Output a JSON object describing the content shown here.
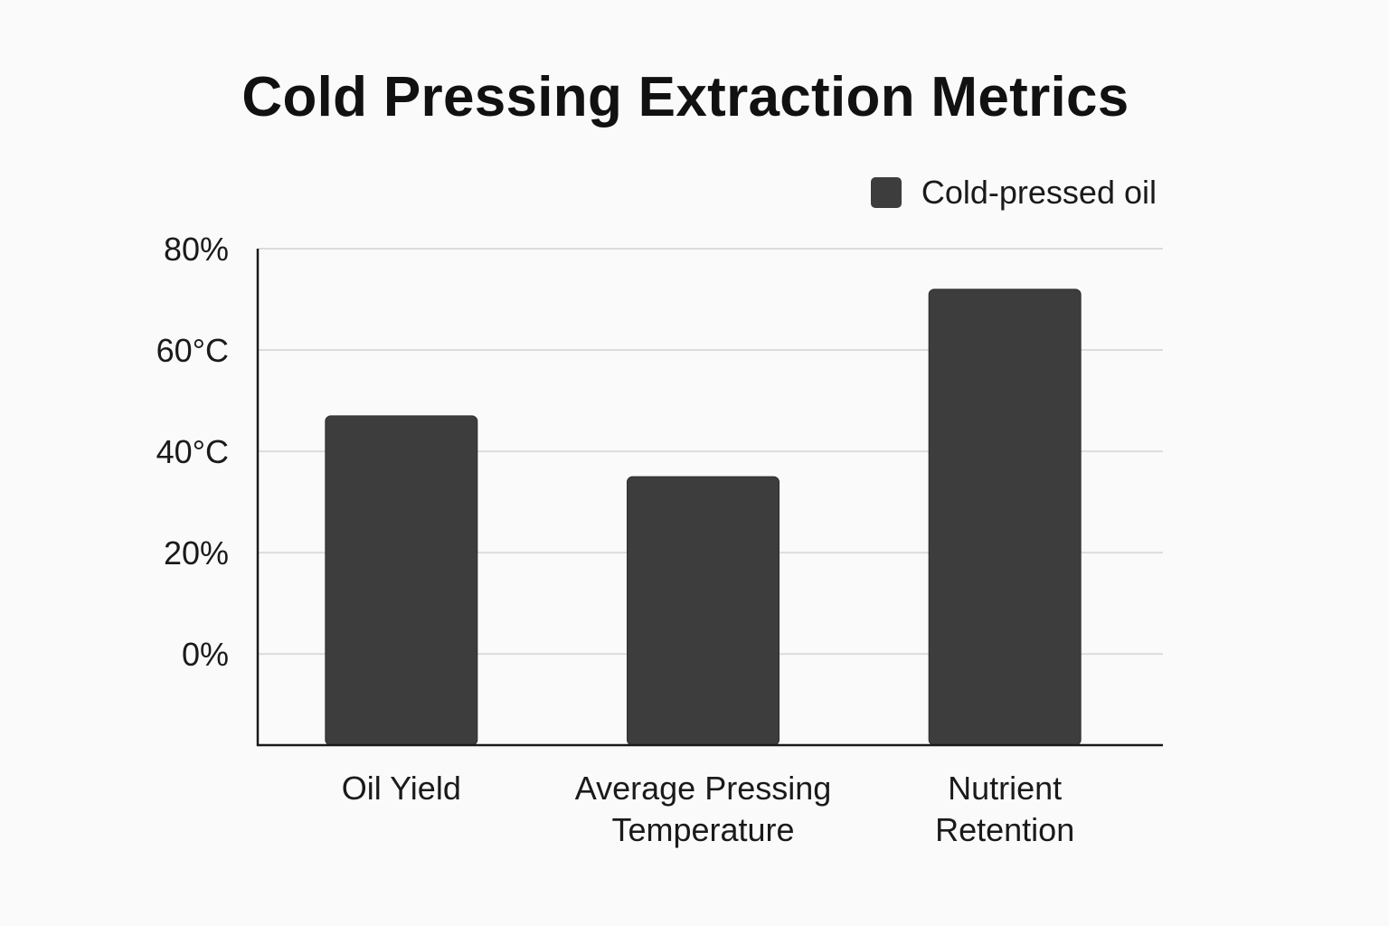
{
  "chart_data": {
    "type": "bar",
    "title": "Cold Pressing Extraction Metrics",
    "categories": [
      [
        "Oil Yield"
      ],
      [
        "Average Pressing",
        "Temperature"
      ],
      [
        "Nutrient",
        "Retention"
      ]
    ],
    "series": [
      {
        "name": "Cold-pressed oil",
        "values": [
          47,
          35,
          72
        ]
      }
    ],
    "y_ticks": [
      {
        "value": 0,
        "label": "0%"
      },
      {
        "value": 20,
        "label": "20%"
      },
      {
        "value": 40,
        "label": "40°C"
      },
      {
        "value": 60,
        "label": "60°C"
      },
      {
        "value": 80,
        "label": "80%"
      }
    ],
    "ylim": [
      -18,
      80
    ],
    "xlabel": "",
    "ylabel": "",
    "grid": true,
    "legend_position": "top-right",
    "colors": {
      "bar": "#3d3d3d",
      "grid": "#dcdcdc",
      "axis": "#1a1a1a"
    }
  }
}
